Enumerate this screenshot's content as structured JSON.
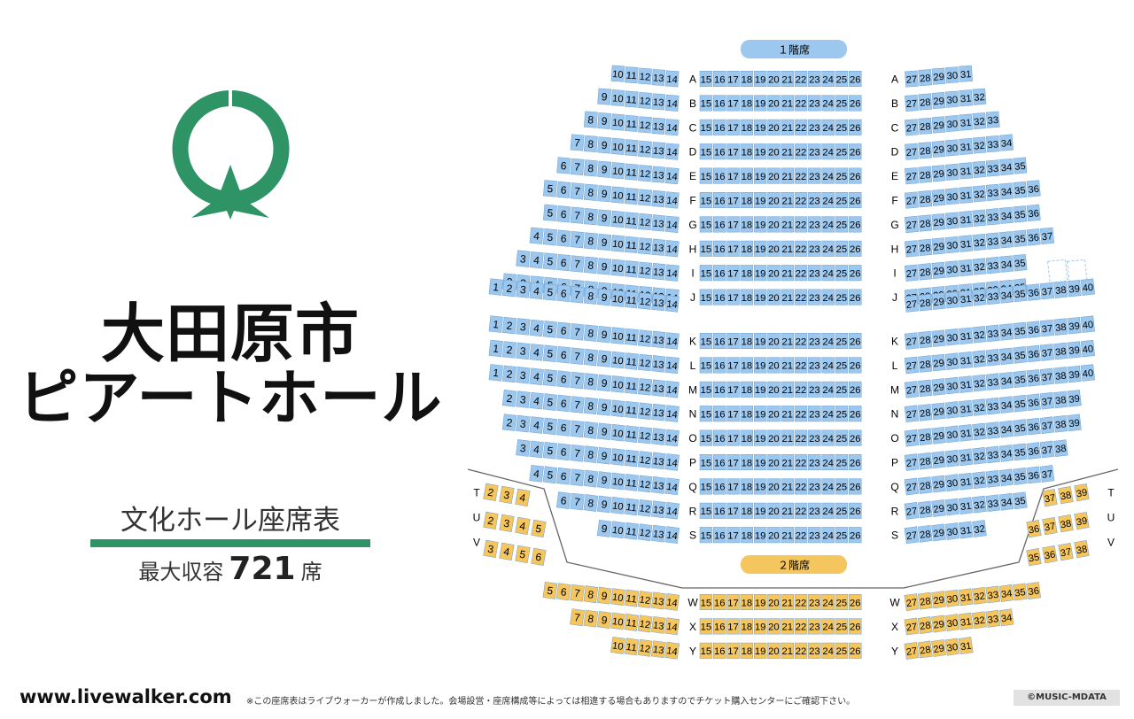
{
  "venue": {
    "name_line1": "大田原市",
    "name_line2": "ピアートホール",
    "subtitle": "文化ホール座席表",
    "capacity_prefix": "最大収容",
    "capacity_number": "721",
    "capacity_suffix": "席"
  },
  "colors": {
    "brand_green": "#2e9466",
    "floor1_seat": "#9cc8ef",
    "floor2_seat": "#f6c65e"
  },
  "floors": {
    "floor1": {
      "label": "１階席",
      "rows": [
        {
          "row": "A",
          "left": [
            10,
            14
          ],
          "right": [
            27,
            31
          ]
        },
        {
          "row": "B",
          "left": [
            9,
            14
          ],
          "right": [
            27,
            32
          ]
        },
        {
          "row": "C",
          "left": [
            8,
            14
          ],
          "right": [
            27,
            33
          ]
        },
        {
          "row": "D",
          "left": [
            7,
            14
          ],
          "right": [
            27,
            34
          ]
        },
        {
          "row": "E",
          "left": [
            6,
            14
          ],
          "right": [
            27,
            35
          ]
        },
        {
          "row": "F",
          "left": [
            5,
            14
          ],
          "right": [
            27,
            36
          ]
        },
        {
          "row": "G",
          "left": [
            5,
            14
          ],
          "right": [
            27,
            36
          ]
        },
        {
          "row": "H",
          "left": [
            4,
            14
          ],
          "right": [
            27,
            37
          ]
        },
        {
          "row": "I",
          "left": [
            3,
            14
          ],
          "right": [
            27,
            35
          ]
        },
        {
          "row": "J",
          "left": [
            2,
            14
          ],
          "right": [
            27,
            35
          ]
        },
        {
          "row": "K",
          "left": [
            1,
            14
          ],
          "right": [
            27,
            40
          ]
        },
        {
          "row": "L",
          "left": [
            1,
            14
          ],
          "right": [
            27,
            40
          ]
        },
        {
          "row": "M",
          "left": [
            1,
            14
          ],
          "right": [
            27,
            40
          ]
        },
        {
          "row": "N",
          "left": [
            2,
            14
          ],
          "right": [
            27,
            39
          ]
        },
        {
          "row": "O",
          "left": [
            2,
            14
          ],
          "right": [
            27,
            39
          ]
        },
        {
          "row": "P",
          "left": [
            3,
            14
          ],
          "right": [
            27,
            38
          ]
        },
        {
          "row": "Q",
          "left": [
            4,
            14
          ],
          "right": [
            27,
            37
          ]
        },
        {
          "row": "R",
          "left": [
            6,
            14
          ],
          "right": [
            27,
            35
          ]
        },
        {
          "row": "S",
          "left": [
            9,
            14
          ],
          "right": [
            27,
            32
          ]
        }
      ],
      "unlabeled_rows": [
        "",
        "",
        ""
      ],
      "empty_slots_row_I": 2
    },
    "floor2": {
      "label": "２階席",
      "side_rows": [
        {
          "row": "T",
          "left": [
            2,
            4
          ],
          "right": [
            37,
            39
          ]
        },
        {
          "row": "U",
          "left": [
            2,
            5
          ],
          "right": [
            36,
            39
          ]
        },
        {
          "row": "V",
          "left": [
            3,
            6
          ],
          "right": [
            35,
            38
          ]
        }
      ],
      "rows": [
        {
          "row": "W",
          "left": [
            5,
            14
          ],
          "right": [
            27,
            36
          ]
        },
        {
          "row": "X",
          "left": [
            7,
            14
          ],
          "right": [
            27,
            34
          ]
        },
        {
          "row": "Y",
          "left": [
            10,
            14
          ],
          "right": [
            27,
            31
          ]
        }
      ]
    },
    "center": [
      15,
      26
    ]
  },
  "footer": {
    "site": "www.livewalker.com",
    "note": "※この座席表はライブウォーカーが作成しました。会場設営・座席構成等によっては相違する場合もありますのでチケット購入センターにご確認下さい。",
    "copyright": "©MUSIC-MDATA"
  }
}
